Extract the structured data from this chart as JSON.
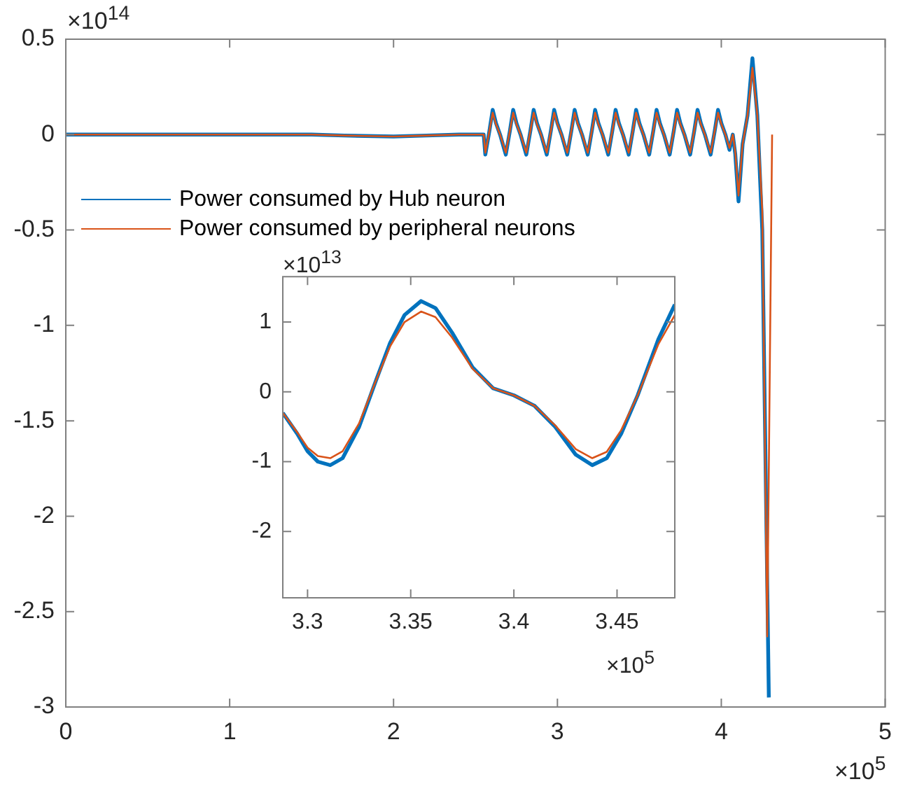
{
  "chart_data": [
    {
      "type": "line",
      "annotations": [
        "×10$^{14}$",
        "×10$^{5}$"
      ],
      "xlim": [
        0,
        5
      ],
      "xticks": [
        0,
        1,
        2,
        3,
        4,
        5
      ],
      "ylim": [
        -3,
        0.5
      ],
      "yticks": [
        -3,
        -2.5,
        -2,
        -1.5,
        -1,
        -0.5,
        0,
        0.5
      ],
      "grid": false,
      "legend": "top left",
      "marker": "none",
      "line_style": "solid",
      "series": [
        {
          "name": "Power consumed by Hub neuron",
          "color": "#0072bd",
          "x": [
            0,
            0.5,
            1,
            1.5,
            1.7,
            2.0,
            2.2,
            2.4,
            2.55,
            2.56,
            2.585,
            2.605,
            2.625,
            2.65,
            2.685,
            2.71,
            2.73,
            2.75,
            2.775,
            2.81,
            2.835,
            2.855,
            2.875,
            2.9,
            2.935,
            2.96,
            2.98,
            3.0,
            3.025,
            3.06,
            3.085,
            3.105,
            3.125,
            3.15,
            3.185,
            3.21,
            3.23,
            3.25,
            3.275,
            3.31,
            3.335,
            3.355,
            3.375,
            3.4,
            3.435,
            3.46,
            3.48,
            3.5,
            3.525,
            3.56,
            3.585,
            3.605,
            3.625,
            3.65,
            3.685,
            3.71,
            3.73,
            3.75,
            3.775,
            3.81,
            3.835,
            3.855,
            3.875,
            3.9,
            3.935,
            3.96,
            3.98,
            4.0,
            4.025,
            4.05,
            4.07,
            4.085,
            4.105,
            4.13,
            4.16,
            4.19,
            4.22,
            4.25,
            4.29
          ],
          "values": [
            0,
            0,
            0,
            0,
            -0.005,
            -0.01,
            -0.005,
            0,
            0,
            -0.105,
            0.02,
            0.13,
            0.06,
            0,
            -0.105,
            0.02,
            0.13,
            0.06,
            0,
            -0.105,
            0.02,
            0.13,
            0.06,
            0,
            -0.105,
            0.02,
            0.13,
            0.06,
            0,
            -0.105,
            0.02,
            0.13,
            0.06,
            0,
            -0.105,
            0.02,
            0.13,
            0.06,
            0,
            -0.105,
            0.02,
            0.13,
            0.06,
            0,
            -0.105,
            0.02,
            0.13,
            0.06,
            0,
            -0.105,
            0.02,
            0.13,
            0.06,
            0,
            -0.105,
            0.02,
            0.13,
            0.06,
            0,
            -0.105,
            0.02,
            0.13,
            0.06,
            0,
            -0.105,
            0.02,
            0.13,
            0.06,
            0,
            -0.08,
            0,
            -0.1,
            -0.35,
            -0.05,
            0.1,
            0.4,
            0.1,
            -0.5,
            -2.95
          ]
        },
        {
          "name": "Power consumed by peripheral neurons",
          "color": "#d95319",
          "x": [
            0,
            0.5,
            1,
            1.5,
            1.7,
            2.0,
            2.2,
            2.4,
            2.55,
            2.56,
            2.585,
            2.605,
            2.625,
            2.65,
            2.685,
            2.71,
            2.73,
            2.75,
            2.775,
            2.81,
            2.835,
            2.855,
            2.875,
            2.9,
            2.935,
            2.96,
            2.98,
            3.0,
            3.025,
            3.06,
            3.085,
            3.105,
            3.125,
            3.15,
            3.185,
            3.21,
            3.23,
            3.25,
            3.275,
            3.31,
            3.335,
            3.355,
            3.375,
            3.4,
            3.435,
            3.46,
            3.48,
            3.5,
            3.525,
            3.56,
            3.585,
            3.605,
            3.625,
            3.65,
            3.685,
            3.71,
            3.73,
            3.75,
            3.775,
            3.81,
            3.835,
            3.855,
            3.875,
            3.9,
            3.935,
            3.96,
            3.98,
            4.0,
            4.025,
            4.05,
            4.07,
            4.085,
            4.105,
            4.13,
            4.16,
            4.19,
            4.22,
            4.25,
            4.28,
            4.31
          ],
          "values": [
            0,
            0,
            0,
            0,
            -0.005,
            -0.01,
            -0.005,
            0,
            0,
            -0.095,
            0.02,
            0.115,
            0.055,
            0,
            -0.095,
            0.02,
            0.115,
            0.055,
            0,
            -0.095,
            0.02,
            0.115,
            0.055,
            0,
            -0.095,
            0.02,
            0.115,
            0.055,
            0,
            -0.095,
            0.02,
            0.115,
            0.055,
            0,
            -0.095,
            0.02,
            0.115,
            0.055,
            0,
            -0.095,
            0.02,
            0.115,
            0.055,
            0,
            -0.095,
            0.02,
            0.115,
            0.055,
            0,
            -0.095,
            0.02,
            0.115,
            0.055,
            0,
            -0.095,
            0.02,
            0.115,
            0.055,
            0,
            -0.095,
            0.02,
            0.115,
            0.055,
            0,
            -0.095,
            0.02,
            0.115,
            0.055,
            0,
            -0.07,
            0,
            -0.09,
            -0.32,
            -0.05,
            0.1,
            0.35,
            0.1,
            -0.4,
            -2.63,
            0
          ]
        }
      ]
    },
    {
      "type": "line",
      "annotations": [
        "×10$^{13}$",
        "×10$^{5}$"
      ],
      "xlim": [
        3.288,
        3.478
      ],
      "xticks": [
        3.3,
        3.35,
        3.4,
        3.45
      ],
      "ylim": [
        -2.95,
        1.65
      ],
      "yticks": [
        -2,
        -1,
        0,
        1
      ],
      "grid": false,
      "marker": "none",
      "line_style": "solid",
      "series": [
        {
          "color": "#0072bd",
          "x": [
            3.288,
            3.295,
            3.3,
            3.305,
            3.311,
            3.317,
            3.325,
            3.333,
            3.34,
            3.347,
            3.355,
            3.362,
            3.37,
            3.38,
            3.39,
            3.4,
            3.41,
            3.42,
            3.43,
            3.438,
            3.445,
            3.452,
            3.46,
            3.47,
            3.478
          ],
          "values": [
            -0.3,
            -0.6,
            -0.85,
            -1.0,
            -1.05,
            -0.95,
            -0.5,
            0.15,
            0.7,
            1.1,
            1.3,
            1.2,
            0.85,
            0.35,
            0.05,
            -0.05,
            -0.2,
            -0.5,
            -0.9,
            -1.05,
            -0.95,
            -0.6,
            -0.05,
            0.75,
            1.25
          ]
        },
        {
          "color": "#d95319",
          "x": [
            3.288,
            3.295,
            3.3,
            3.305,
            3.311,
            3.317,
            3.325,
            3.333,
            3.34,
            3.347,
            3.355,
            3.362,
            3.37,
            3.38,
            3.39,
            3.4,
            3.41,
            3.42,
            3.43,
            3.438,
            3.445,
            3.452,
            3.46,
            3.47,
            3.478
          ],
          "values": [
            -0.3,
            -0.58,
            -0.8,
            -0.92,
            -0.95,
            -0.85,
            -0.45,
            0.15,
            0.65,
            1.0,
            1.15,
            1.07,
            0.78,
            0.33,
            0.05,
            -0.05,
            -0.2,
            -0.48,
            -0.82,
            -0.95,
            -0.86,
            -0.55,
            -0.05,
            0.68,
            1.1
          ]
        }
      ]
    }
  ]
}
